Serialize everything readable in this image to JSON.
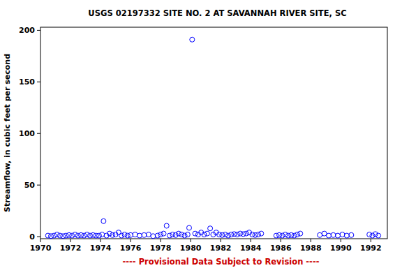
{
  "chart_data": {
    "type": "scatter",
    "title": "USGS 02197332 SITE NO. 2 AT SAVANNAH RIVER SITE, SC",
    "y_label": "Streamflow, in cubic feet per second",
    "footnote": "---- Provisional Data Subject to Revision ----",
    "x": [
      1970.5,
      1970.7,
      1970.9,
      1971.1,
      1971.3,
      1971.5,
      1971.7,
      1971.9,
      1972.1,
      1972.3,
      1972.5,
      1972.7,
      1972.9,
      1973.1,
      1973.3,
      1973.5,
      1973.7,
      1973.9,
      1974.1,
      1974.2,
      1974.4,
      1974.6,
      1974.8,
      1975.0,
      1975.2,
      1975.4,
      1975.6,
      1975.8,
      1976.0,
      1976.3,
      1976.6,
      1976.9,
      1977.2,
      1977.5,
      1977.8,
      1978.0,
      1978.2,
      1978.4,
      1978.6,
      1978.8,
      1979.0,
      1979.2,
      1979.4,
      1979.6,
      1979.8,
      1979.9,
      1980.1,
      1980.3,
      1980.5,
      1980.7,
      1980.9,
      1981.1,
      1981.3,
      1981.5,
      1981.7,
      1981.9,
      1982.1,
      1982.3,
      1982.5,
      1982.7,
      1982.9,
      1983.1,
      1983.3,
      1983.5,
      1983.7,
      1983.9,
      1984.1,
      1984.3,
      1984.5,
      1984.7,
      1985.7,
      1985.9,
      1986.1,
      1986.3,
      1986.5,
      1986.7,
      1986.9,
      1987.1,
      1987.3,
      1988.6,
      1988.9,
      1989.2,
      1989.5,
      1989.8,
      1990.1,
      1990.4,
      1990.7,
      1991.9,
      1992.1,
      1992.3,
      1992.5
    ],
    "values": [
      1,
      0.5,
      1,
      2,
      1,
      0.5,
      1,
      1.5,
      1,
      2,
      1,
      1.5,
      1,
      2,
      1,
      1.5,
      1,
      1,
      2,
      15,
      1,
      3,
      1.5,
      2,
      4,
      1,
      2,
      1,
      1.5,
      2,
      1,
      1.5,
      2,
      0.5,
      1,
      2,
      3,
      10.5,
      1,
      2,
      1.5,
      3,
      2,
      1,
      2,
      8.5,
      191,
      3,
      2,
      4,
      2,
      3,
      8,
      2,
      4,
      2,
      1.5,
      2,
      1,
      2,
      2.5,
      2,
      3,
      2.5,
      3,
      4,
      2,
      1.5,
      2,
      3,
      1,
      1.5,
      1,
      2,
      1,
      1.5,
      1,
      2,
      3,
      1.5,
      3,
      1,
      1.5,
      1,
      2,
      1,
      1.5,
      2,
      1,
      2.5,
      1
    ],
    "color": "#0000ff",
    "marker": "circle",
    "xlim": [
      1970,
      1993.1
    ],
    "ylim": [
      -2,
      203
    ],
    "xticks": [
      1970,
      1972,
      1974,
      1976,
      1978,
      1980,
      1982,
      1984,
      1986,
      1988,
      1990,
      1992
    ],
    "yticks": [
      0,
      50,
      100,
      150,
      200
    ],
    "grid": false
  }
}
